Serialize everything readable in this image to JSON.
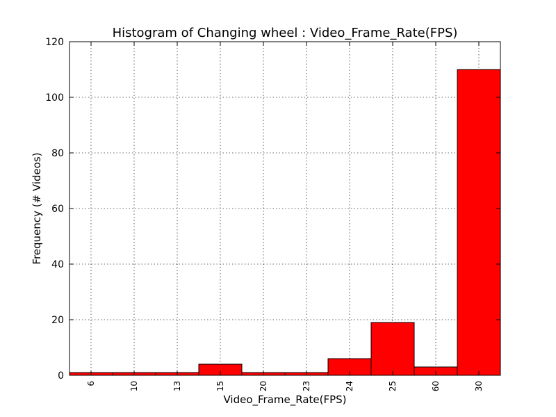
{
  "chart_data": {
    "type": "bar",
    "title": "Histogram of Changing wheel : Video_Frame_Rate(FPS)",
    "xlabel": "Video_Frame_Rate(FPS)",
    "ylabel": "Frequency (# Videos)",
    "categories": [
      "6",
      "10",
      "13",
      "15",
      "20",
      "23",
      "24",
      "25",
      "60",
      "30"
    ],
    "values": [
      1,
      1,
      1,
      4,
      1,
      1,
      6,
      19,
      3,
      110
    ],
    "ylim": [
      0,
      120
    ],
    "yticks": [
      "0",
      "20",
      "40",
      "60",
      "80",
      "100",
      "120"
    ],
    "grid": true,
    "bar_color": "#ff0000",
    "edge_color": "#000000"
  }
}
